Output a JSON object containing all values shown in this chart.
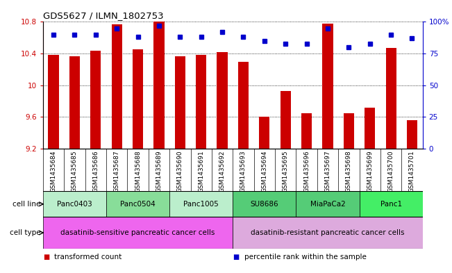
{
  "title": "GDS5627 / ILMN_1802753",
  "samples": [
    "GSM1435684",
    "GSM1435685",
    "GSM1435686",
    "GSM1435687",
    "GSM1435688",
    "GSM1435689",
    "GSM1435690",
    "GSM1435691",
    "GSM1435692",
    "GSM1435693",
    "GSM1435694",
    "GSM1435695",
    "GSM1435696",
    "GSM1435697",
    "GSM1435698",
    "GSM1435699",
    "GSM1435700",
    "GSM1435701"
  ],
  "bar_values": [
    10.38,
    10.37,
    10.44,
    10.77,
    10.45,
    10.8,
    10.37,
    10.38,
    10.42,
    10.3,
    9.6,
    9.93,
    9.65,
    10.78,
    9.65,
    9.72,
    10.47,
    9.56
  ],
  "percentile_values": [
    90,
    90,
    90,
    95,
    88,
    97,
    88,
    88,
    92,
    88,
    85,
    83,
    83,
    95,
    80,
    83,
    90,
    87
  ],
  "bar_color": "#cc0000",
  "percentile_color": "#0000cc",
  "ymin": 9.2,
  "ymax": 10.8,
  "yticks": [
    9.2,
    9.6,
    10.0,
    10.4,
    10.8
  ],
  "ytick_labels": [
    "9.2",
    "9.6",
    "10",
    "10.4",
    "10.8"
  ],
  "right_yticks": [
    0,
    25,
    50,
    75,
    100
  ],
  "right_ytick_labels": [
    "0",
    "25",
    "50",
    "75",
    "100%"
  ],
  "cell_lines": [
    {
      "label": "Panc0403",
      "start": 0,
      "end": 3,
      "color": "#bbeecc"
    },
    {
      "label": "Panc0504",
      "start": 3,
      "end": 6,
      "color": "#88dd99"
    },
    {
      "label": "Panc1005",
      "start": 6,
      "end": 9,
      "color": "#bbeecc"
    },
    {
      "label": "SU8686",
      "start": 9,
      "end": 12,
      "color": "#55cc77"
    },
    {
      "label": "MiaPaCa2",
      "start": 12,
      "end": 15,
      "color": "#55cc77"
    },
    {
      "label": "Panc1",
      "start": 15,
      "end": 18,
      "color": "#44ee66"
    }
  ],
  "cell_types": [
    {
      "label": "dasatinib-sensitive pancreatic cancer cells",
      "start": 0,
      "end": 9,
      "color": "#ee66ee"
    },
    {
      "label": "dasatinib-resistant pancreatic cancer cells",
      "start": 9,
      "end": 18,
      "color": "#ddaadd"
    }
  ],
  "legend_items": [
    {
      "label": "transformed count",
      "color": "#cc0000"
    },
    {
      "label": "percentile rank within the sample",
      "color": "#0000cc"
    }
  ],
  "left_axis_color": "#cc0000",
  "right_axis_color": "#0000cc",
  "bg_color": "#ffffff",
  "grid_color": "#000000",
  "cell_line_row_label": "cell line",
  "cell_type_row_label": "cell type",
  "xlabel_bg_color": "#cccccc"
}
